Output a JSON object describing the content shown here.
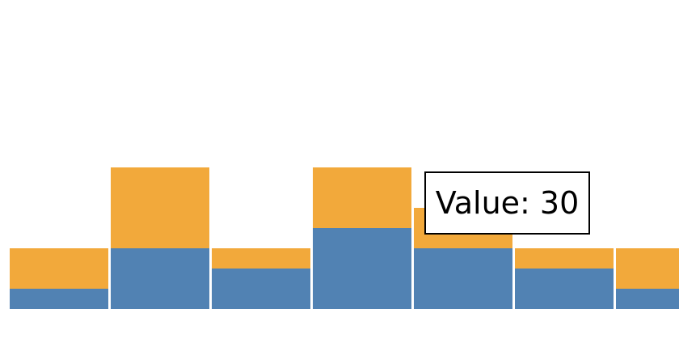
{
  "chart_data": {
    "type": "bar",
    "stacked": true,
    "categories": [
      "",
      "",
      "",
      "",
      "",
      "",
      ""
    ],
    "series": [
      {
        "values": [
          10,
          30,
          20,
          40,
          30,
          20,
          10
        ],
        "color": "#5182b3"
      },
      {
        "values": [
          20,
          40,
          10,
          30,
          20,
          10,
          20
        ],
        "color": "#f2a93b"
      }
    ],
    "ylim": [
      0,
      70
    ],
    "grid": false,
    "legend": "none"
  },
  "tooltip": {
    "text": "Value: 30"
  }
}
